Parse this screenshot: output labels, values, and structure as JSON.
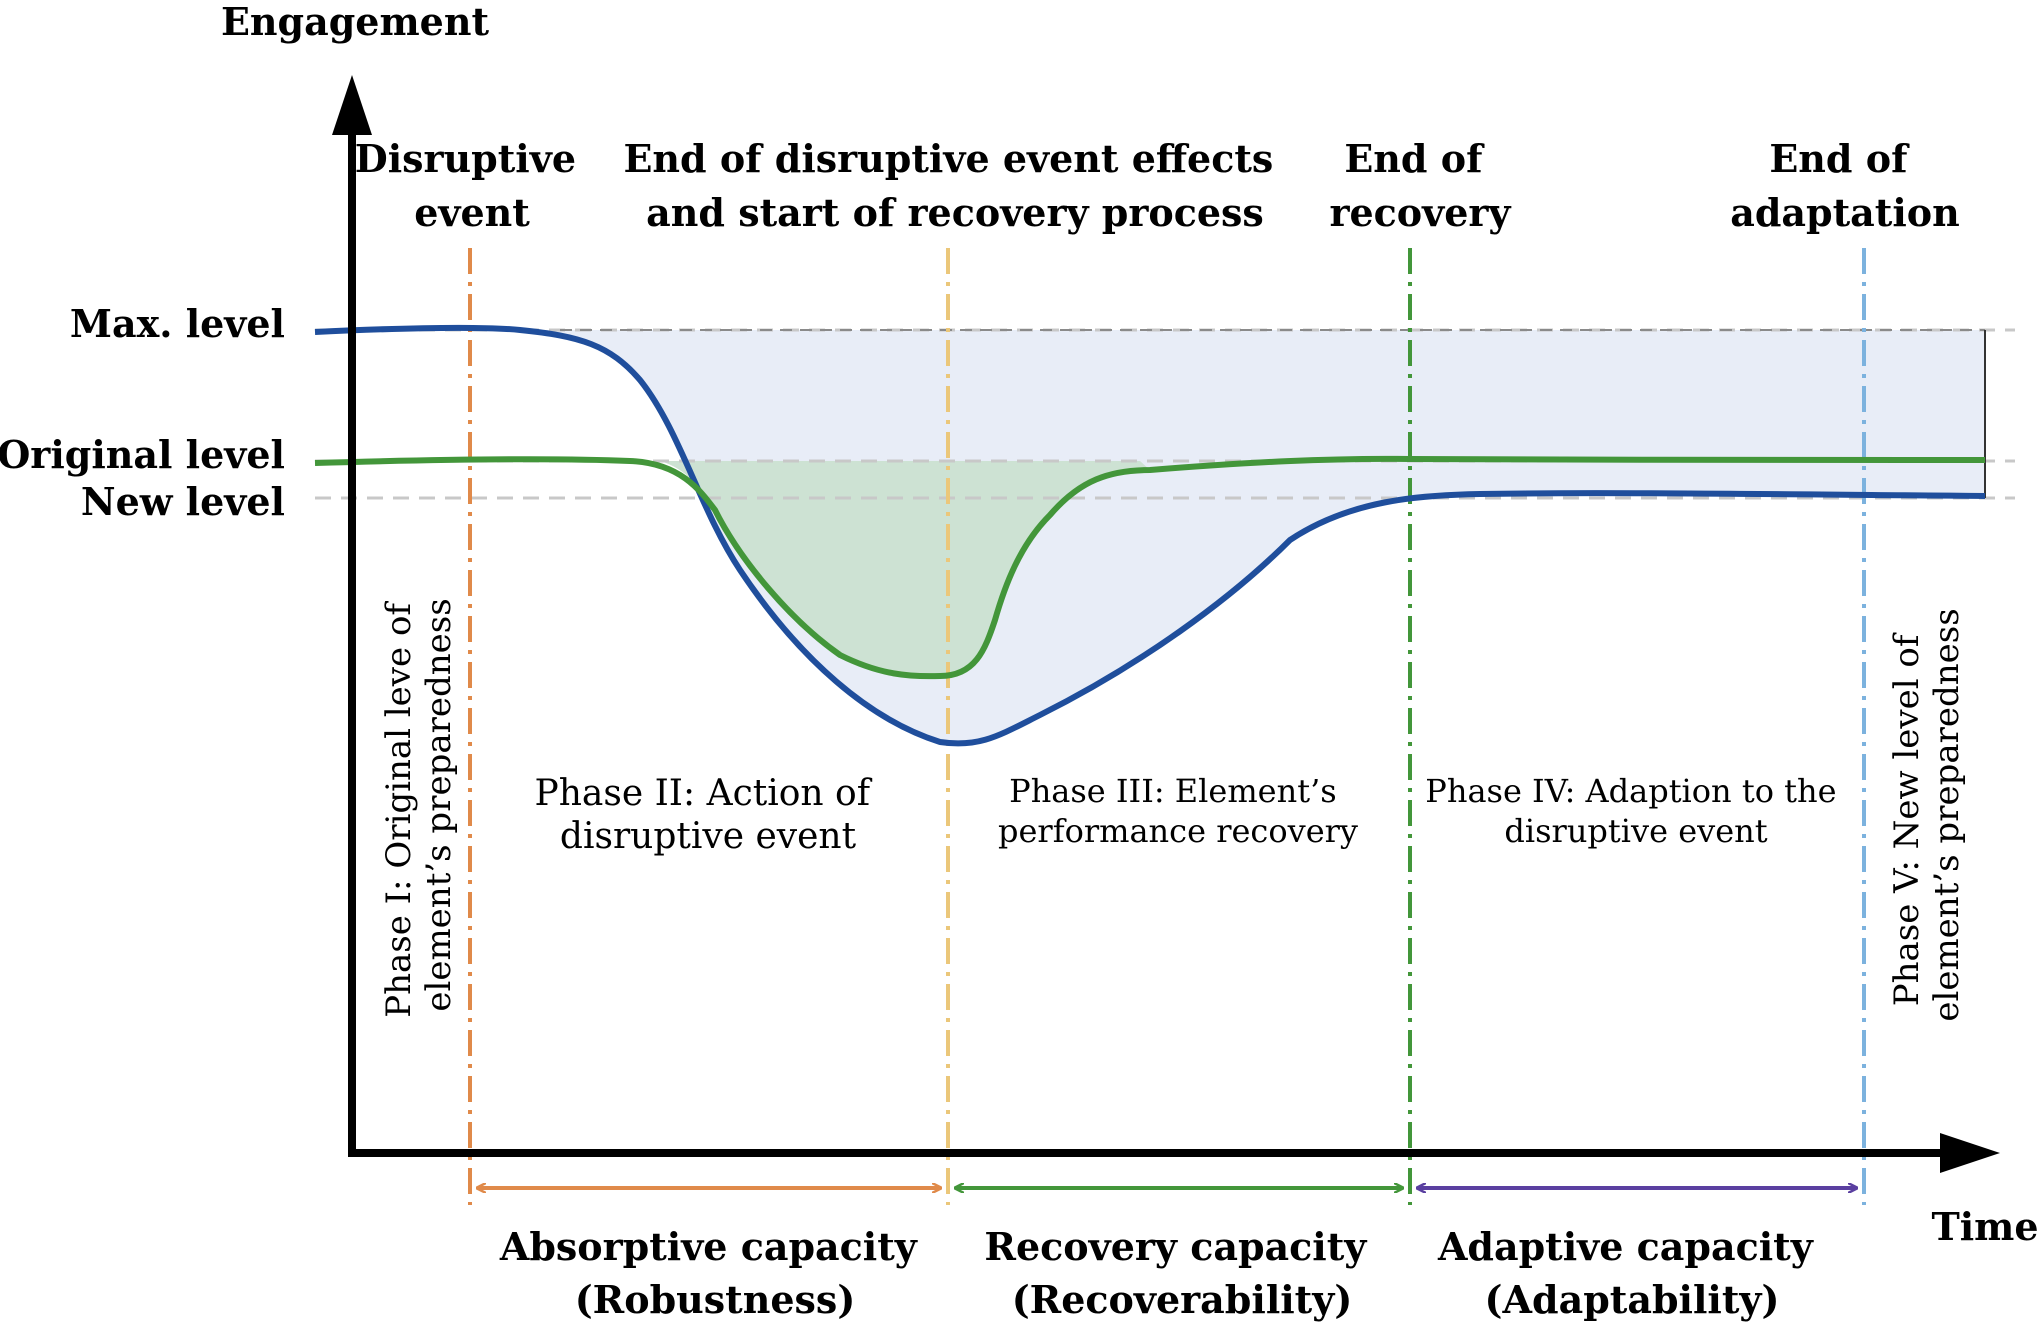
{
  "axes": {
    "y_label": "Engagement",
    "x_label": "Time"
  },
  "levels": {
    "max": "Max. level",
    "original": "Original level",
    "new": "New level"
  },
  "events": {
    "disruptive": [
      "Disruptive",
      "event"
    ],
    "end_effects": [
      "End of disruptive event effects",
      "and start of recovery process"
    ],
    "end_recovery": [
      "End of",
      "recovery"
    ],
    "end_adaptation": [
      "End of",
      "adaptation"
    ]
  },
  "phases": {
    "phase1": [
      "Phase I: Original leve of",
      "element’s preparedness"
    ],
    "phase2": [
      "Phase II: Action of",
      "disruptive event"
    ],
    "phase3": [
      "Phase III: Element’s",
      "performance recovery"
    ],
    "phase4": [
      "Phase IV: Adaption to the",
      "disruptive event"
    ],
    "phase5": [
      "Phase V: New level of",
      "element’s preparedness"
    ]
  },
  "capacities": {
    "absorptive": [
      "Absorptive capacity",
      "(Robustness)"
    ],
    "recovery": [
      "Recovery capacity",
      "(Recoverability)"
    ],
    "adaptive": [
      "Adaptive capacity",
      "(Adaptability)"
    ]
  },
  "colors": {
    "axis": "#000000",
    "blue_curve": "#1f4e9c",
    "green_curve": "#43963a",
    "blue_fill": "#e8edf7",
    "green_fill": "#cde2d3",
    "orange": "#e08a4a",
    "yellow": "#ebc77a",
    "green": "#43963a",
    "light_blue": "#7cb2de",
    "purple": "#5a3fa0",
    "guide": "#c8c8c8"
  }
}
